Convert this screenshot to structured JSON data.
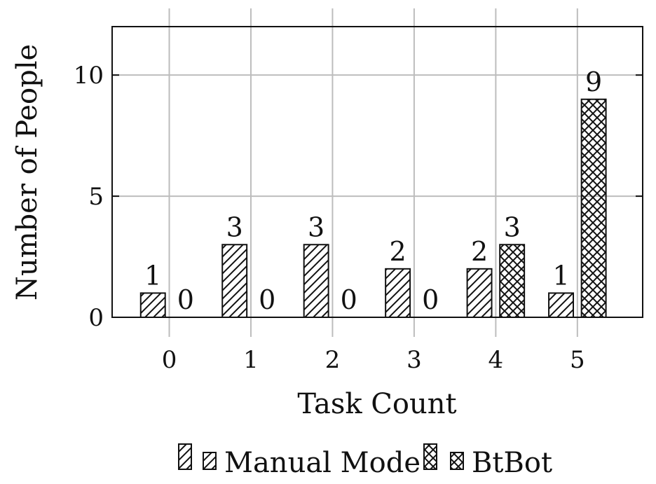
{
  "chart_data": {
    "type": "bar",
    "title": "",
    "xlabel": "Task Count",
    "ylabel": "Number of People",
    "categories": [
      "0",
      "1",
      "2",
      "3",
      "4",
      "5"
    ],
    "x_ticks": [
      "0",
      "1",
      "2",
      "3",
      "4",
      "5"
    ],
    "y_ticks": [
      0,
      5,
      10
    ],
    "ylim": [
      0,
      12
    ],
    "grid": true,
    "legend_position": "bottom",
    "series": [
      {
        "name": "Manual Mode",
        "values": [
          1,
          3,
          3,
          2,
          2,
          1
        ],
        "pattern": "diagonal-hatch",
        "color": "#111111"
      },
      {
        "name": "BtBot",
        "values": [
          0,
          0,
          0,
          0,
          3,
          9
        ],
        "pattern": "crosshatch",
        "color": "#111111"
      }
    ],
    "legend_entries": [
      "Manual Mode",
      "BtBot"
    ],
    "colors": {
      "bar_stroke": "#111111",
      "grid": "#bdbdbd",
      "axis": "#111111",
      "background": "#ffffff"
    }
  }
}
